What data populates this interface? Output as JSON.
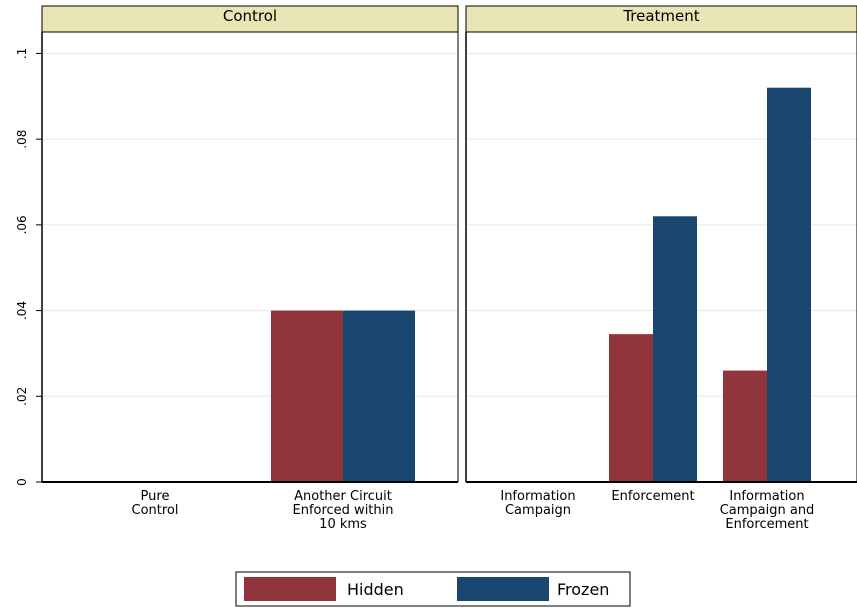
{
  "chart_data": {
    "type": "bar",
    "ylim": [
      0,
      0.105
    ],
    "yticks": [
      {
        "value": 0,
        "label": "0"
      },
      {
        "value": 0.02,
        "label": ".02"
      },
      {
        "value": 0.04,
        "label": ".04"
      },
      {
        "value": 0.06,
        "label": ".06"
      },
      {
        "value": 0.08,
        "label": ".08"
      },
      {
        "value": 0.1,
        "label": ".1"
      }
    ],
    "grid": true,
    "legend_position": "bottom",
    "panels": [
      {
        "title": "Control",
        "categories": [
          {
            "label_lines": [
              "Pure",
              "Control"
            ],
            "values": [
              0,
              0
            ]
          },
          {
            "label_lines": [
              "Another Circuit",
              "Enforced within",
              "10 kms"
            ],
            "values": [
              0.04,
              0.04
            ]
          }
        ]
      },
      {
        "title": "Treatment",
        "categories": [
          {
            "label_lines": [
              "Information",
              "Campaign"
            ],
            "values": [
              0,
              0
            ]
          },
          {
            "label_lines": [
              "Enforcement"
            ],
            "values": [
              0.0345,
              0.062
            ]
          },
          {
            "label_lines": [
              "Information",
              "Campaign and",
              "Enforcement"
            ],
            "values": [
              0.026,
              0.092
            ]
          }
        ]
      }
    ],
    "series": [
      {
        "name": "Hidden",
        "color": "#90353b"
      },
      {
        "name": "Frozen",
        "color": "#1a476f"
      }
    ]
  },
  "colors": {
    "panel_header_bg": "#eae5b4",
    "grid": "#e6e6e6"
  }
}
